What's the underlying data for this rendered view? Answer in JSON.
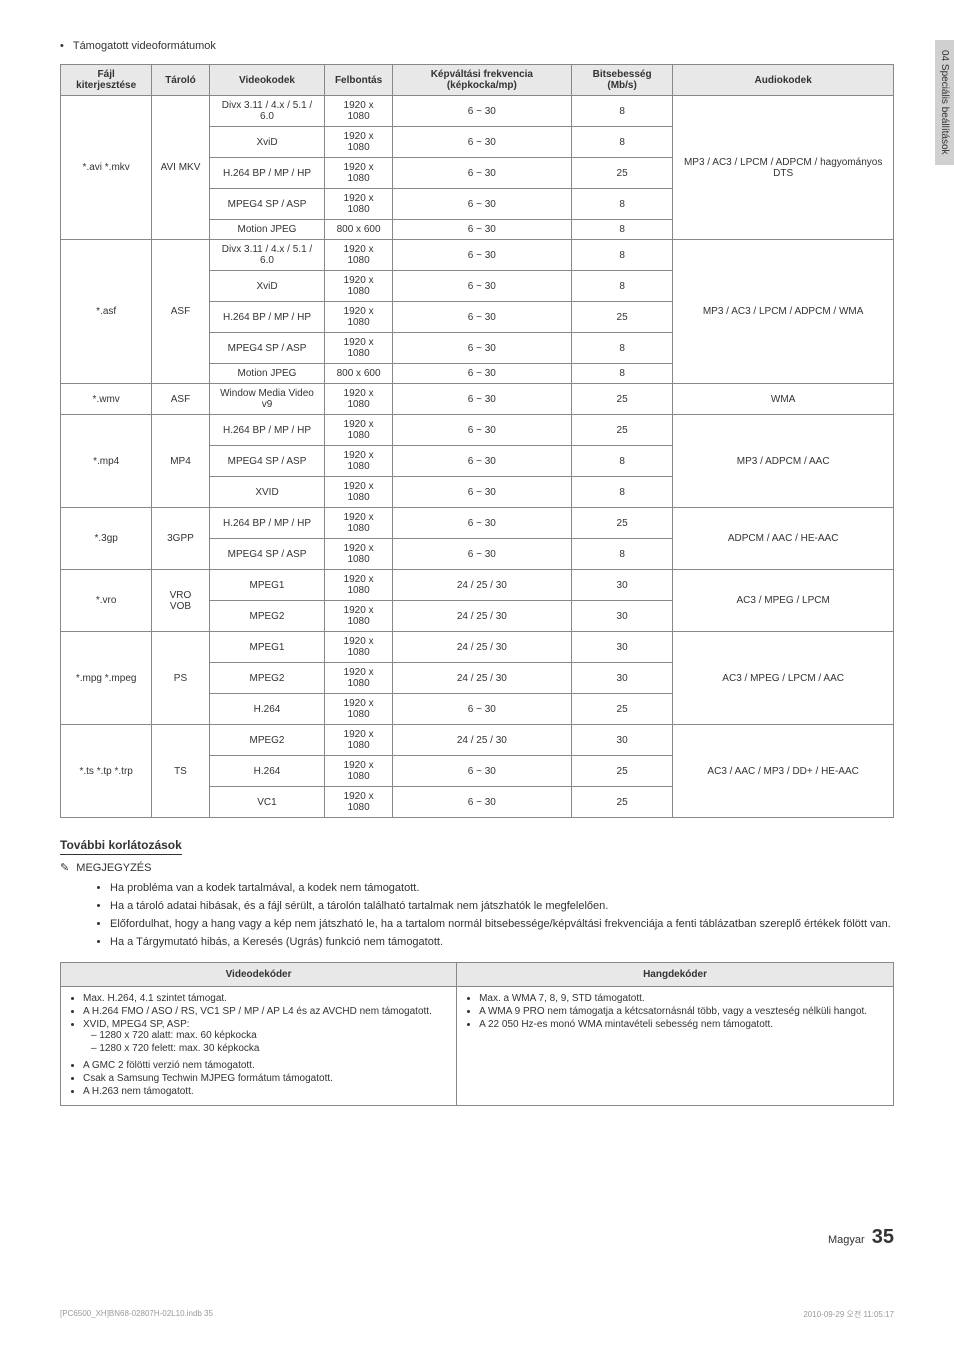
{
  "side_tab": "04  Speciális beállítások",
  "section_head_bullet": "•",
  "section_head": "Támogatott videoformátumok",
  "codec_table": {
    "headers": [
      "Fájl kiterjesztése",
      "Tároló",
      "Videokodek",
      "Felbontás",
      "Képváltási frekvencia (képkocka/mp)",
      "Bitsebesség (Mb/s)",
      "Audiokodek"
    ],
    "groups": [
      {
        "ext": "*.avi *.mkv",
        "container": "AVI MKV",
        "audio": "MP3 / AC3 / LPCM / ADPCM / hagyományos DTS",
        "rows": [
          [
            "Divx 3.11 / 4.x / 5.1 / 6.0",
            "1920 x 1080",
            "6 ~ 30",
            "8"
          ],
          [
            "XviD",
            "1920 x 1080",
            "6 ~ 30",
            "8"
          ],
          [
            "H.264 BP / MP / HP",
            "1920 x 1080",
            "6 ~ 30",
            "25"
          ],
          [
            "MPEG4 SP / ASP",
            "1920 x 1080",
            "6 ~ 30",
            "8"
          ],
          [
            "Motion JPEG",
            "800 x 600",
            "6 ~ 30",
            "8"
          ]
        ]
      },
      {
        "ext": "*.asf",
        "container": "ASF",
        "audio": "MP3 / AC3 / LPCM / ADPCM / WMA",
        "rows": [
          [
            "Divx 3.11 / 4.x / 5.1 / 6.0",
            "1920 x 1080",
            "6 ~ 30",
            "8"
          ],
          [
            "XviD",
            "1920 x 1080",
            "6 ~ 30",
            "8"
          ],
          [
            "H.264 BP / MP / HP",
            "1920 x 1080",
            "6 ~ 30",
            "25"
          ],
          [
            "MPEG4 SP / ASP",
            "1920 x 1080",
            "6 ~ 30",
            "8"
          ],
          [
            "Motion JPEG",
            "800 x 600",
            "6 ~ 30",
            "8"
          ]
        ]
      },
      {
        "ext": "*.wmv",
        "container": "ASF",
        "audio": "WMA",
        "rows": [
          [
            "Window Media Video v9",
            "1920 x 1080",
            "6 ~ 30",
            "25"
          ]
        ]
      },
      {
        "ext": "*.mp4",
        "container": "MP4",
        "audio": "MP3 / ADPCM / AAC",
        "rows": [
          [
            "H.264 BP / MP / HP",
            "1920 x 1080",
            "6 ~ 30",
            "25"
          ],
          [
            "MPEG4 SP / ASP",
            "1920 x 1080",
            "6 ~ 30",
            "8"
          ],
          [
            "XVID",
            "1920 x 1080",
            "6 ~ 30",
            "8"
          ]
        ]
      },
      {
        "ext": "*.3gp",
        "container": "3GPP",
        "audio": "ADPCM / AAC / HE-AAC",
        "rows": [
          [
            "H.264 BP / MP / HP",
            "1920 x 1080",
            "6 ~ 30",
            "25"
          ],
          [
            "MPEG4 SP / ASP",
            "1920 x 1080",
            "6 ~ 30",
            "8"
          ]
        ]
      },
      {
        "ext": "*.vro",
        "container": "VRO VOB",
        "audio": "AC3 / MPEG / LPCM",
        "rows": [
          [
            "MPEG1",
            "1920 x 1080",
            "24 / 25 / 30",
            "30"
          ],
          [
            "MPEG2",
            "1920 x 1080",
            "24 / 25 / 30",
            "30"
          ]
        ]
      },
      {
        "ext": "*.mpg *.mpeg",
        "container": "PS",
        "audio": "AC3 / MPEG / LPCM / AAC",
        "rows": [
          [
            "MPEG1",
            "1920 x 1080",
            "24 / 25 / 30",
            "30"
          ],
          [
            "MPEG2",
            "1920 x 1080",
            "24 / 25 / 30",
            "30"
          ],
          [
            "H.264",
            "1920 x 1080",
            "6 ~ 30",
            "25"
          ]
        ]
      },
      {
        "ext": "*.ts *.tp *.trp",
        "container": "TS",
        "audio": "AC3 / AAC / MP3 / DD+ / HE-AAC",
        "rows": [
          [
            "MPEG2",
            "1920 x 1080",
            "24 / 25 / 30",
            "30"
          ],
          [
            "H.264",
            "1920 x 1080",
            "6 ~ 30",
            "25"
          ],
          [
            "VC1",
            "1920 x 1080",
            "6 ~ 30",
            "25"
          ]
        ]
      }
    ]
  },
  "subhead": "További korlátozások",
  "note_label": "MEGJEGYZÉS",
  "notes": [
    "Ha probléma van a kodek tartalmával, a kodek nem támogatott.",
    "Ha a tároló adatai hibásak, és a fájl sérült, a tárolón található tartalmak nem játszhatók le megfelelően.",
    "Előfordulhat, hogy a hang vagy a kép nem játszható le, ha a tartalom normál bitsebessége/képváltási frekvenciája a fenti táblázatban szereplő értékek fölött van.",
    "Ha a Tárgymutató hibás, a Keresés (Ugrás) funkció nem támogatott."
  ],
  "decoder_table": {
    "headers": [
      "Videodekóder",
      "Hangdekóder"
    ],
    "video_items": [
      "Max. H.264, 4.1 szintet támogat.",
      "A H.264 FMO / ASO / RS, VC1 SP / MP / AP L4 és az AVCHD nem támogatott.",
      "XVID, MPEG4 SP, ASP:"
    ],
    "video_sub": [
      "–  1280 x 720 alatt: max. 60 képkocka",
      "–  1280 x 720 felett: max. 30 képkocka"
    ],
    "video_items2": [
      "A GMC 2 fölötti verzió nem támogatott.",
      "Csak a Samsung Techwin MJPEG formátum támogatott.",
      "A H.263 nem támogatott."
    ],
    "audio_items": [
      "Max. a WMA 7, 8, 9, STD támogatott.",
      "A WMA 9 PRO nem támogatja a kétcsatornásnál több, vagy a veszteség nélküli hangot.",
      "A 22 050 Hz-es monó WMA mintavételi sebesség nem támogatott."
    ]
  },
  "footer_lang": "Magyar",
  "footer_page": "35",
  "tiny_left": "[PC6500_XH]BN68-02807H-02L10.indb   35",
  "tiny_right": "2010-09-29   오전 11:05:17"
}
